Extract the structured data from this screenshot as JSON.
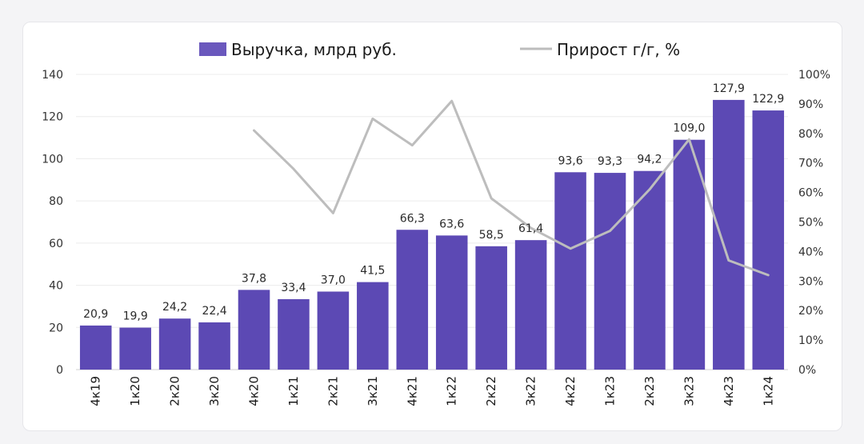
{
  "chart_data": {
    "type": "bar",
    "categories": [
      "4к19",
      "1к20",
      "2к20",
      "3к20",
      "4к20",
      "1к21",
      "2к21",
      "3к21",
      "4к21",
      "1к22",
      "2к22",
      "3к22",
      "4к22",
      "1к23",
      "2к23",
      "3к23",
      "4к23",
      "1к24"
    ],
    "series": [
      {
        "name": "Выручка, млрд руб.",
        "type": "bar",
        "axis": "left",
        "color": "#5c49b4",
        "values": [
          20.9,
          19.9,
          24.2,
          22.4,
          37.8,
          33.4,
          37.0,
          41.5,
          66.3,
          63.6,
          58.5,
          61.4,
          93.6,
          93.3,
          94.2,
          109.0,
          127.9,
          122.9
        ],
        "labels": [
          "20,9",
          "19,9",
          "24,2",
          "22,4",
          "37,8",
          "33,4",
          "37,0",
          "41,5",
          "66,3",
          "63,6",
          "58,5",
          "61,4",
          "93,6",
          "93,3",
          "94,2",
          "109,0",
          "127,9",
          "122,9"
        ]
      },
      {
        "name": "Прирост г/г, %",
        "type": "line",
        "axis": "right",
        "color": "#bdbdbd",
        "values": [
          null,
          null,
          null,
          null,
          81,
          68,
          53,
          85,
          76,
          91,
          58,
          48,
          41,
          47,
          61,
          78,
          37,
          32
        ]
      }
    ],
    "y_left": {
      "min": 0,
      "max": 140,
      "ticks": [
        "0",
        "20",
        "40",
        "60",
        "80",
        "100",
        "120",
        "140"
      ]
    },
    "y_right": {
      "min": 0,
      "max": 100,
      "ticks": [
        "0%",
        "10%",
        "20%",
        "30%",
        "40%",
        "50%",
        "60%",
        "70%",
        "80%",
        "90%",
        "100%"
      ]
    },
    "grid": true,
    "legend_position": "top"
  }
}
